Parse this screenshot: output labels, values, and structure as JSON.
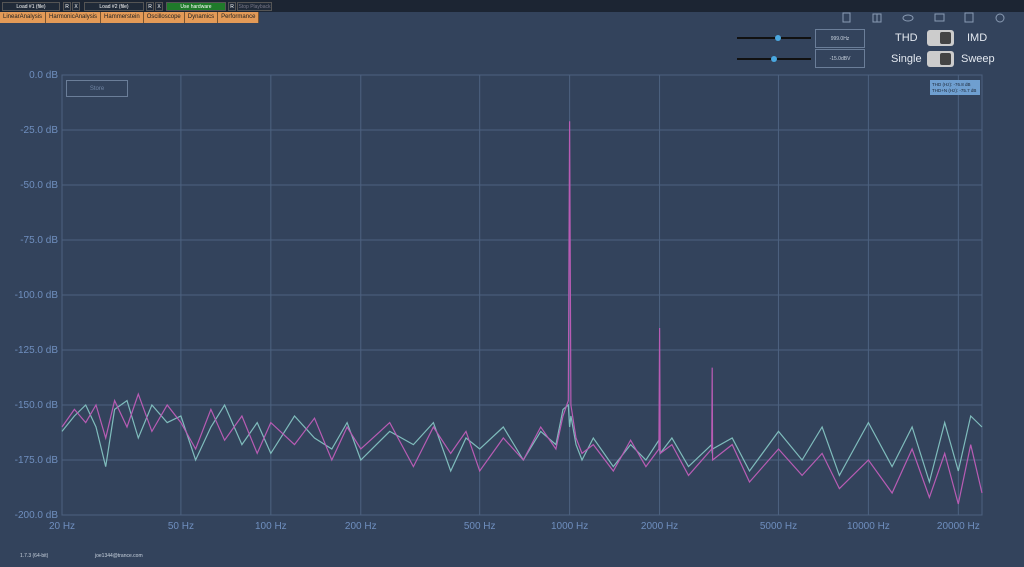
{
  "toolbar": {
    "load1": "Load #1 (file)",
    "load2": "Load #2 (file)",
    "hardware": "Use hardware",
    "stop": "Stop Playback",
    "small": [
      "R",
      "X",
      "R",
      "X",
      "R"
    ]
  },
  "tabs": [
    "LinearAnalysis",
    "HarmonicAnalysis",
    "Hammerstein",
    "Oscilloscope",
    "Dynamics",
    "Performance"
  ],
  "controls": {
    "frequency": "999.0Hz",
    "level": "-15.0dBV",
    "thd": "THD",
    "imd": "IMD",
    "single": "Single",
    "sweep": "Sweep",
    "store": "Store"
  },
  "chart_data": {
    "type": "line",
    "xlog": true,
    "grid": true,
    "annotations": [
      "THD (Hz): -76.8 dB",
      "THD+N (Hz): -75.7 dB"
    ],
    "x": [
      20,
      22,
      24,
      26,
      28,
      30,
      33,
      36,
      40,
      45,
      50,
      56,
      63,
      70,
      80,
      90,
      100,
      120,
      140,
      160,
      180,
      200,
      250,
      300,
      350,
      400,
      450,
      500,
      600,
      700,
      800,
      900,
      950,
      990,
      1000,
      1010,
      1050,
      1100,
      1200,
      1400,
      1600,
      1800,
      1990,
      2000,
      2010,
      2200,
      2500,
      2990,
      3000,
      3010,
      3500,
      4000,
      5000,
      6000,
      7000,
      8000,
      10000,
      12000,
      14000,
      16000,
      18000,
      20000,
      22000,
      24000
    ],
    "series": [
      {
        "color": "#7fbcbc",
        "values": [
          -162,
          -155,
          -150,
          -160,
          -178,
          -152,
          -148,
          -165,
          -150,
          -158,
          -155,
          -175,
          -160,
          -150,
          -168,
          -158,
          -172,
          -155,
          -165,
          -170,
          -158,
          -175,
          -162,
          -168,
          -158,
          -180,
          -165,
          -170,
          -160,
          -175,
          -162,
          -168,
          -152,
          -150,
          -160,
          -155,
          -168,
          -175,
          -165,
          -178,
          -168,
          -175,
          -166,
          -170,
          -172,
          -165,
          -178,
          -168,
          -172,
          -170,
          -165,
          -180,
          -162,
          -175,
          -160,
          -182,
          -158,
          -178,
          -160,
          -185,
          -158,
          -180,
          -155,
          -160
        ]
      },
      {
        "color": "#b85cb4",
        "values": [
          -160,
          -152,
          -158,
          -150,
          -165,
          -148,
          -160,
          -145,
          -162,
          -150,
          -158,
          -170,
          -152,
          -166,
          -155,
          -172,
          -158,
          -168,
          -156,
          -175,
          -160,
          -170,
          -158,
          -178,
          -160,
          -172,
          -162,
          -180,
          -165,
          -175,
          -160,
          -170,
          -155,
          -148,
          -21,
          -150,
          -165,
          -172,
          -168,
          -180,
          -166,
          -178,
          -170,
          -115,
          -172,
          -168,
          -182,
          -170,
          -133,
          -175,
          -168,
          -185,
          -170,
          -182,
          -172,
          -188,
          -175,
          -190,
          -170,
          -192,
          -172,
          -195,
          -168,
          -190
        ]
      }
    ],
    "xlim": [
      20,
      24000
    ],
    "ylim": [
      -200,
      0
    ],
    "xticks": [
      {
        "value": 20,
        "label": "20 Hz"
      },
      {
        "value": 50,
        "label": "50 Hz"
      },
      {
        "value": 100,
        "label": "100 Hz"
      },
      {
        "value": 200,
        "label": "200 Hz"
      },
      {
        "value": 500,
        "label": "500 Hz"
      },
      {
        "value": 1000,
        "label": "1000 Hz"
      },
      {
        "value": 2000,
        "label": "2000 Hz"
      },
      {
        "value": 5000,
        "label": "5000 Hz"
      },
      {
        "value": 10000,
        "label": "10000 Hz"
      },
      {
        "value": 20000,
        "label": "20000 Hz"
      }
    ],
    "yticks": [
      {
        "value": 0,
        "label": "0.0 dB"
      },
      {
        "value": -25,
        "label": "-25.0 dB"
      },
      {
        "value": -50,
        "label": "-50.0 dB"
      },
      {
        "value": -75,
        "label": "-75.0 dB"
      },
      {
        "value": -100,
        "label": "-100.0 dB"
      },
      {
        "value": -125,
        "label": "-125.0 dB"
      },
      {
        "value": -150,
        "label": "-150.0 dB"
      },
      {
        "value": -175,
        "label": "-175.0 dB"
      },
      {
        "value": -200,
        "label": "-200.0 dB"
      }
    ]
  },
  "footer": {
    "version": "1.7.3 (64-bit)",
    "email": "joe1344@trance.com"
  }
}
